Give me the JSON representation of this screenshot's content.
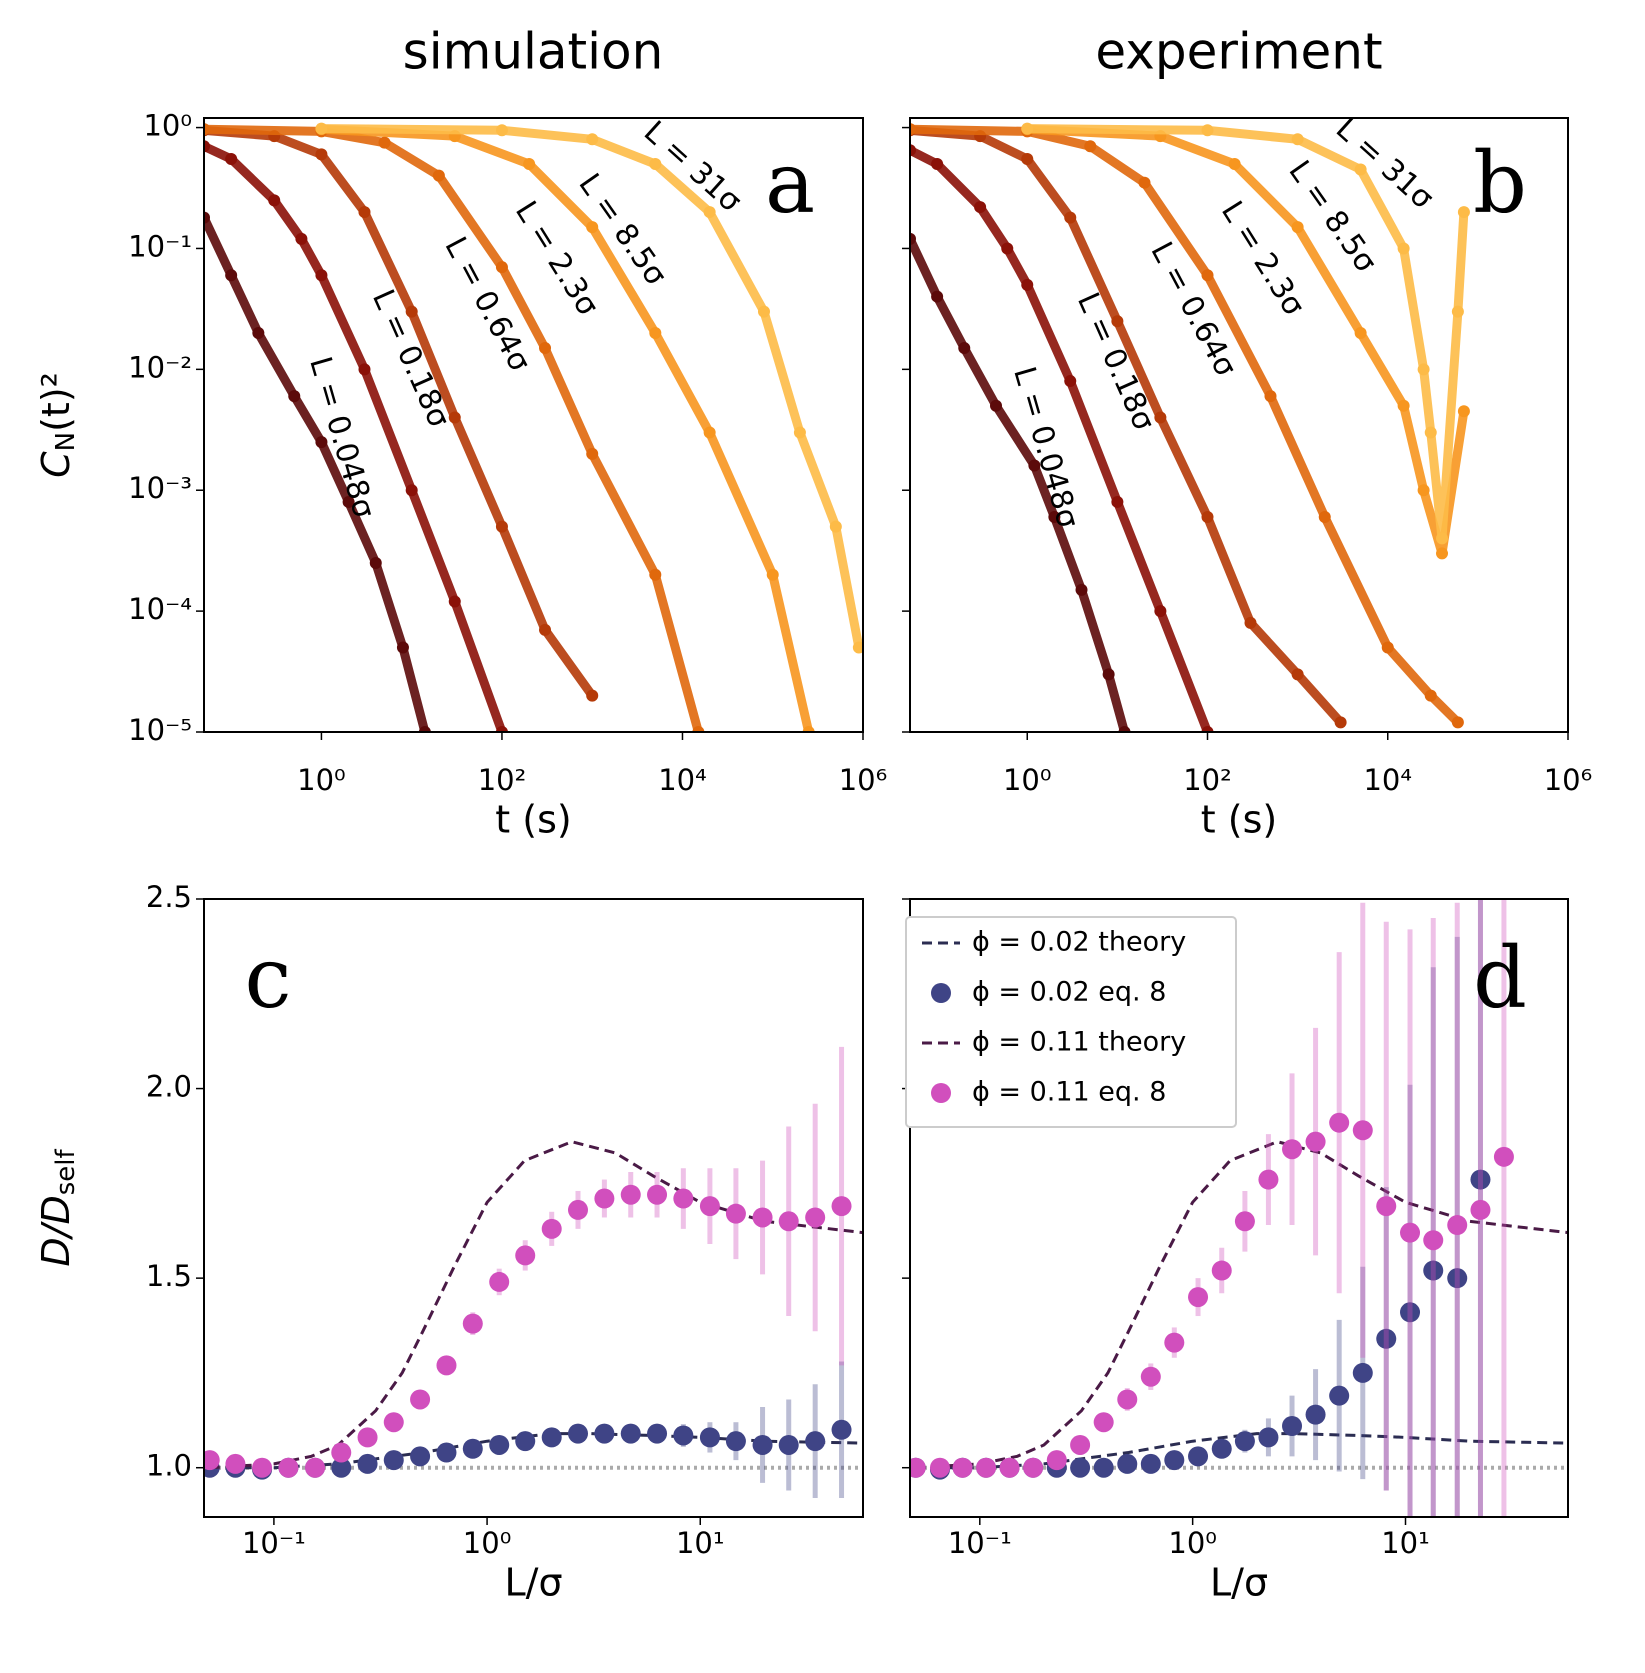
{
  "chart_data": [
    {
      "type": "scatter",
      "title": "simulation",
      "label": "a",
      "xlabel": "t (s)",
      "ylabel": {
        "main": "C",
        "sub": "N",
        "tail": "(t)²"
      },
      "xscale": "log",
      "yscale": "log",
      "xlim": [
        0.05,
        1000000
      ],
      "ylim": [
        1e-05,
        1.2
      ],
      "xticks": [
        {
          "value": 1,
          "label": "10⁰"
        },
        {
          "value": 100,
          "label": "10²"
        },
        {
          "value": 10000,
          "label": "10⁴"
        },
        {
          "value": 1000000,
          "label": "10⁶"
        }
      ],
      "yticks": [
        {
          "value": 1,
          "label": "10⁰"
        },
        {
          "value": 0.1,
          "label": "10⁻¹"
        },
        {
          "value": 0.01,
          "label": "10⁻²"
        },
        {
          "value": 0.001,
          "label": "10⁻³"
        },
        {
          "value": 0.0001,
          "label": "10⁻⁴"
        },
        {
          "value": 1e-05,
          "label": "10⁻⁵"
        }
      ],
      "series": [
        {
          "name": "L = 0.048σ",
          "color": "#5c0a0a",
          "x": [
            0.05,
            0.1,
            0.2,
            0.5,
            1,
            2,
            4,
            8,
            14
          ],
          "values": [
            0.18,
            0.06,
            0.02,
            0.006,
            0.0025,
            0.0008,
            0.00025,
            5e-05,
            1e-05
          ]
        },
        {
          "name": "L = 0.18σ",
          "color": "#8b1108",
          "x": [
            0.05,
            0.1,
            0.3,
            0.6,
            1,
            3,
            10,
            30,
            100
          ],
          "values": [
            0.7,
            0.55,
            0.25,
            0.12,
            0.06,
            0.01,
            0.001,
            0.00012,
            1e-05
          ]
        },
        {
          "name": "L = 0.64σ",
          "color": "#b53a08",
          "x": [
            0.05,
            0.3,
            1,
            3,
            10,
            30,
            100,
            300,
            1000
          ],
          "values": [
            0.95,
            0.85,
            0.6,
            0.2,
            0.03,
            0.004,
            0.0005,
            7e-05,
            2e-05
          ]
        },
        {
          "name": "L = 2.3σ",
          "color": "#e0680c",
          "x": [
            0.05,
            1,
            5,
            20,
            100,
            300,
            1000,
            5000,
            15000
          ],
          "values": [
            0.97,
            0.93,
            0.75,
            0.4,
            0.07,
            0.015,
            0.002,
            0.0002,
            1e-05
          ]
        },
        {
          "name": "L = 8.5σ",
          "color": "#f7961f",
          "x": [
            1,
            30,
            200,
            1000,
            5000,
            20000,
            100000,
            250000
          ],
          "values": [
            0.97,
            0.85,
            0.5,
            0.15,
            0.02,
            0.003,
            0.0002,
            1e-05
          ]
        },
        {
          "name": "L = 31σ",
          "color": "#fdbb47",
          "x": [
            1,
            100,
            1000,
            5000,
            20000,
            80000,
            200000,
            500000,
            900000
          ],
          "values": [
            0.98,
            0.95,
            0.8,
            0.5,
            0.2,
            0.03,
            0.003,
            0.0005,
            5e-05
          ]
        }
      ]
    },
    {
      "type": "scatter",
      "title": "experiment",
      "label": "b",
      "xlabel": "t (s)",
      "xscale": "log",
      "yscale": "log",
      "xlim": [
        0.05,
        1000000
      ],
      "ylim": [
        1e-05,
        1.2
      ],
      "xticks": [
        {
          "value": 1,
          "label": "10⁰"
        },
        {
          "value": 100,
          "label": "10²"
        },
        {
          "value": 10000,
          "label": "10⁴"
        },
        {
          "value": 1000000,
          "label": "10⁶"
        }
      ],
      "yticks": [
        1,
        0.1,
        0.01,
        0.001,
        0.0001,
        1e-05
      ],
      "series": [
        {
          "name": "L = 0.048σ",
          "color": "#5c0a0a",
          "x": [
            0.05,
            0.1,
            0.2,
            0.45,
            1.2,
            2,
            4,
            8,
            12
          ],
          "values": [
            0.12,
            0.04,
            0.015,
            0.005,
            0.0016,
            0.0006,
            0.00015,
            3e-05,
            1e-05
          ]
        },
        {
          "name": "L = 0.18σ",
          "color": "#8b1108",
          "x": [
            0.05,
            0.1,
            0.3,
            0.6,
            1,
            3,
            10,
            30,
            100
          ],
          "values": [
            0.65,
            0.5,
            0.22,
            0.1,
            0.05,
            0.008,
            0.0008,
            0.0001,
            1e-05
          ]
        },
        {
          "name": "L = 0.64σ",
          "color": "#b53a08",
          "x": [
            0.05,
            0.3,
            1,
            3,
            10,
            30,
            100,
            300,
            1000,
            3000
          ],
          "values": [
            0.95,
            0.85,
            0.55,
            0.18,
            0.025,
            0.004,
            0.0006,
            8e-05,
            3e-05,
            1.2e-05
          ]
        },
        {
          "name": "L = 2.3σ",
          "color": "#e0680c",
          "x": [
            0.05,
            1,
            5,
            20,
            100,
            500,
            2000,
            10000,
            30000,
            60000
          ],
          "values": [
            0.97,
            0.93,
            0.7,
            0.35,
            0.06,
            0.006,
            0.0006,
            5e-05,
            2e-05,
            1.2e-05
          ]
        },
        {
          "name": "L = 8.5σ",
          "color": "#f7961f",
          "x": [
            1,
            30,
            200,
            1000,
            5000,
            15000,
            25000,
            40000,
            70000
          ],
          "values": [
            0.97,
            0.85,
            0.5,
            0.15,
            0.02,
            0.005,
            0.001,
            0.0003,
            0.0045
          ]
        },
        {
          "name": "L = 31σ",
          "color": "#fdbb47",
          "x": [
            1,
            100,
            1000,
            5000,
            15000,
            25000,
            30000,
            40000,
            60000,
            70000
          ],
          "values": [
            0.98,
            0.95,
            0.8,
            0.45,
            0.1,
            0.01,
            0.003,
            0.0004,
            0.03,
            0.2
          ]
        }
      ]
    },
    {
      "type": "errorbar",
      "label": "c",
      "xlabel": "L/σ",
      "ylabel": {
        "main": "D/D",
        "sub": "self"
      },
      "xscale": "log",
      "xlim": [
        0.047,
        58
      ],
      "ylim": [
        0.87,
        2.5
      ],
      "hline": 1,
      "hline_color": "#aaaaaa",
      "xticks": [
        {
          "value": 0.1,
          "label": "10⁻¹"
        },
        {
          "value": 1,
          "label": "10⁰"
        },
        {
          "value": 10,
          "label": "10¹"
        }
      ],
      "yticks": [
        {
          "value": 1,
          "label": "1.0"
        },
        {
          "value": 1.5,
          "label": "1.5"
        },
        {
          "value": 2,
          "label": "2.0"
        },
        {
          "value": 2.5,
          "label": "2.5"
        }
      ],
      "legend": false,
      "series": [
        {
          "kind": "line",
          "color": "#2b2d52",
          "x": [
            0.05,
            0.1,
            0.2,
            0.5,
            1,
            2,
            3,
            6,
            10,
            20,
            58
          ],
          "values": [
            1.0,
            1.0,
            1.01,
            1.04,
            1.07,
            1.09,
            1.09,
            1.085,
            1.08,
            1.07,
            1.065
          ]
        },
        {
          "kind": "points",
          "color": "#3f4486",
          "x": [
            0.05,
            0.066,
            0.088,
            0.117,
            0.156,
            0.207,
            0.275,
            0.365,
            0.485,
            0.645,
            0.857,
            1.14,
            1.51,
            2.01,
            2.67,
            3.55,
            4.72,
            6.27,
            8.33,
            11.1,
            14.7,
            19.6,
            26,
            34.6,
            46
          ],
          "values": [
            1.0,
            1.0,
            0.995,
            1.0,
            1.0,
            1.0,
            1.01,
            1.02,
            1.03,
            1.04,
            1.05,
            1.06,
            1.07,
            1.08,
            1.09,
            1.09,
            1.09,
            1.09,
            1.085,
            1.08,
            1.07,
            1.06,
            1.06,
            1.07,
            1.1
          ],
          "errors": [
            0.005,
            0.005,
            0.005,
            0.005,
            0.005,
            0.005,
            0.006,
            0.006,
            0.008,
            0.008,
            0.01,
            0.01,
            0.012,
            0.015,
            0.018,
            0.02,
            0.02,
            0.025,
            0.03,
            0.04,
            0.05,
            0.1,
            0.12,
            0.15,
            0.18
          ]
        },
        {
          "kind": "line",
          "color": "#4a1a46",
          "x": [
            0.05,
            0.1,
            0.15,
            0.2,
            0.3,
            0.4,
            0.5,
            0.7,
            1,
            1.5,
            2.5,
            4,
            6,
            10,
            20,
            58
          ],
          "values": [
            1.0,
            1.01,
            1.03,
            1.06,
            1.15,
            1.25,
            1.36,
            1.53,
            1.7,
            1.81,
            1.86,
            1.83,
            1.77,
            1.7,
            1.65,
            1.62
          ]
        },
        {
          "kind": "points",
          "color": "#d14fbd",
          "x": [
            0.05,
            0.066,
            0.088,
            0.117,
            0.156,
            0.207,
            0.275,
            0.365,
            0.485,
            0.645,
            0.857,
            1.14,
            1.51,
            2.01,
            2.67,
            3.55,
            4.72,
            6.27,
            8.33,
            11.1,
            14.7,
            19.6,
            26,
            34.6,
            46
          ],
          "values": [
            1.02,
            1.01,
            1.0,
            1.0,
            1.0,
            1.04,
            1.08,
            1.12,
            1.18,
            1.27,
            1.38,
            1.49,
            1.56,
            1.63,
            1.68,
            1.71,
            1.72,
            1.72,
            1.71,
            1.69,
            1.67,
            1.66,
            1.65,
            1.66,
            1.69
          ],
          "errors": [
            0.01,
            0.01,
            0.01,
            0.01,
            0.01,
            0.015,
            0.015,
            0.02,
            0.02,
            0.025,
            0.03,
            0.035,
            0.04,
            0.045,
            0.05,
            0.05,
            0.06,
            0.06,
            0.08,
            0.1,
            0.12,
            0.15,
            0.25,
            0.3,
            0.42
          ]
        }
      ]
    },
    {
      "type": "errorbar",
      "label": "d",
      "xlabel": "L/σ",
      "xscale": "log",
      "xlim": [
        0.047,
        58
      ],
      "ylim": [
        0.87,
        2.5
      ],
      "hline": 1,
      "hline_color": "#aaaaaa",
      "xticks": [
        {
          "value": 0.1,
          "label": "10⁻¹"
        },
        {
          "value": 1,
          "label": "10⁰"
        },
        {
          "value": 10,
          "label": "10¹"
        }
      ],
      "yticks": [
        1,
        1.5,
        2,
        2.5
      ],
      "legend": "upper left",
      "series": [
        {
          "name": "ϕ = 0.02 theory",
          "kind": "line",
          "color": "#2b2d52",
          "x": [
            0.05,
            0.1,
            0.2,
            0.5,
            1,
            2,
            3,
            6,
            10,
            20,
            58
          ],
          "values": [
            1.0,
            1.0,
            1.01,
            1.04,
            1.07,
            1.09,
            1.09,
            1.085,
            1.08,
            1.07,
            1.065
          ]
        },
        {
          "name": "ϕ = 0.02 eq. 8",
          "kind": "points",
          "color": "#3f4486",
          "x": [
            0.05,
            0.065,
            0.083,
            0.107,
            0.138,
            0.178,
            0.23,
            0.296,
            0.382,
            0.493,
            0.636,
            0.82,
            1.06,
            1.37,
            1.76,
            2.27,
            2.93,
            3.78,
            4.88,
            6.3,
            8.12,
            10.5,
            13.5,
            17.5,
            22.5
          ],
          "values": [
            1.0,
            0.995,
            1.0,
            1.0,
            1.0,
            1.0,
            1.0,
            1.0,
            1.0,
            1.01,
            1.01,
            1.02,
            1.03,
            1.05,
            1.07,
            1.08,
            1.11,
            1.14,
            1.19,
            1.25,
            1.34,
            1.41,
            1.52,
            1.5,
            1.76
          ],
          "errors": [
            0.005,
            0.005,
            0.005,
            0.005,
            0.005,
            0.005,
            0.006,
            0.006,
            0.008,
            0.01,
            0.01,
            0.012,
            0.015,
            0.02,
            0.03,
            0.05,
            0.08,
            0.12,
            0.2,
            0.28,
            0.4,
            0.6,
            0.8,
            0.9,
            1.0
          ]
        },
        {
          "name": "ϕ = 0.11 theory",
          "kind": "line",
          "color": "#4a1a46",
          "x": [
            0.05,
            0.1,
            0.15,
            0.2,
            0.3,
            0.4,
            0.5,
            0.7,
            1,
            1.5,
            2.5,
            4,
            6,
            10,
            20,
            58
          ],
          "values": [
            1.0,
            1.01,
            1.03,
            1.06,
            1.15,
            1.25,
            1.36,
            1.53,
            1.7,
            1.81,
            1.86,
            1.83,
            1.77,
            1.7,
            1.65,
            1.62
          ]
        },
        {
          "name": "ϕ = 0.11 eq. 8",
          "kind": "points",
          "color": "#d14fbd",
          "x": [
            0.05,
            0.065,
            0.083,
            0.107,
            0.138,
            0.178,
            0.23,
            0.296,
            0.382,
            0.493,
            0.636,
            0.82,
            1.06,
            1.37,
            1.76,
            2.27,
            2.93,
            3.78,
            4.88,
            6.3,
            8.12,
            10.5,
            13.5,
            17.5,
            22.5,
            29
          ],
          "values": [
            1.0,
            1.0,
            1.0,
            1.0,
            1.0,
            1.0,
            1.02,
            1.06,
            1.12,
            1.18,
            1.24,
            1.33,
            1.45,
            1.52,
            1.65,
            1.76,
            1.84,
            1.86,
            1.91,
            1.89,
            1.69,
            1.62,
            1.6,
            1.64,
            1.68,
            1.82
          ],
          "errors": [
            0.01,
            0.01,
            0.01,
            0.01,
            0.01,
            0.015,
            0.02,
            0.02,
            0.025,
            0.03,
            0.035,
            0.04,
            0.05,
            0.06,
            0.08,
            0.12,
            0.2,
            0.3,
            0.45,
            0.6,
            0.75,
            0.8,
            0.85,
            0.85,
            0.9,
            0.95
          ]
        }
      ]
    }
  ]
}
